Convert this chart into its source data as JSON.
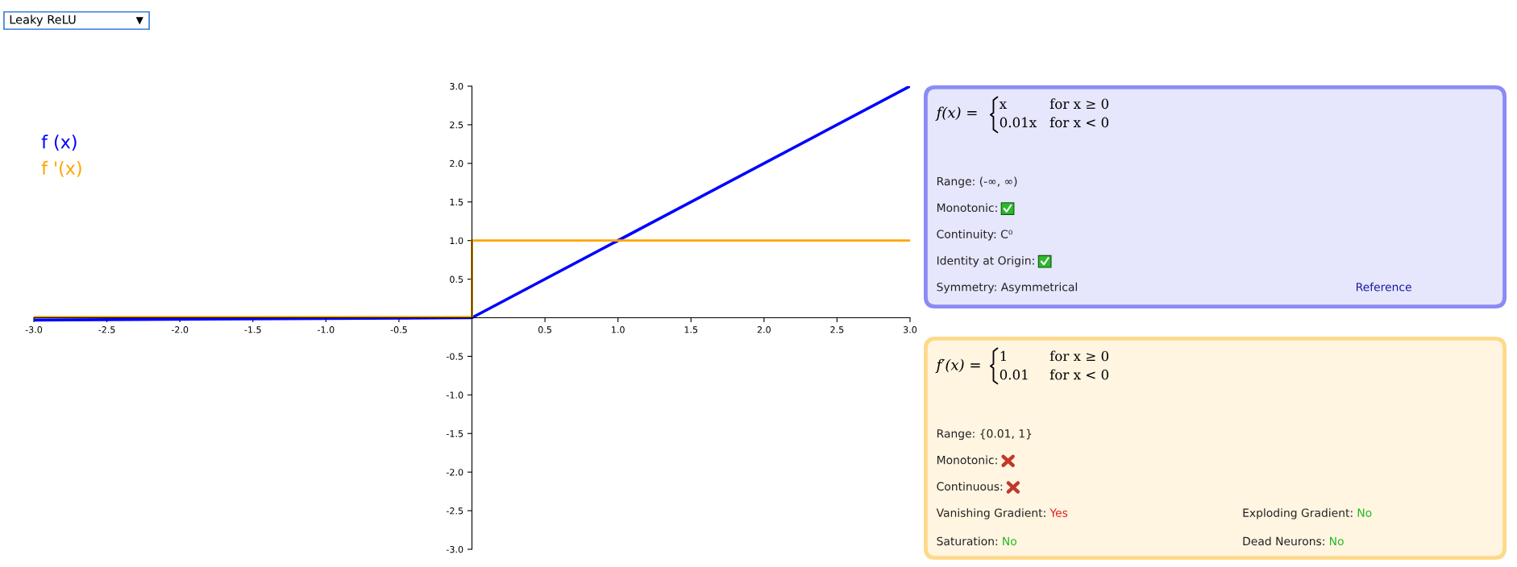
{
  "chart_data": [
    {
      "type": "other",
      "annotations": [
        "Leaky ReLU"
      ]
    },
    {
      "type": "line",
      "xlim": [
        -3,
        3
      ],
      "ylim": [
        -3,
        3
      ],
      "xticks": [
        {
          "value": -3,
          "label": "-3.0"
        },
        {
          "value": -2.5,
          "label": "-2.5"
        },
        {
          "value": -2,
          "label": "-2.0"
        },
        {
          "value": -1.5,
          "label": "-1.5"
        },
        {
          "value": -1,
          "label": "-1.0"
        },
        {
          "value": -0.5,
          "label": "-0.5"
        },
        {
          "value": 0.5,
          "label": "0.5"
        },
        {
          "value": 1,
          "label": "1.0"
        },
        {
          "value": 1.5,
          "label": "1.5"
        },
        {
          "value": 2,
          "label": "2.0"
        },
        {
          "value": 2.5,
          "label": "2.5"
        },
        {
          "value": 3,
          "label": "3.0"
        }
      ],
      "yticks": [
        {
          "value": -3,
          "label": "-3.0"
        },
        {
          "value": -2.5,
          "label": "-2.5"
        },
        {
          "value": -2,
          "label": "-2.0"
        },
        {
          "value": -1.5,
          "label": "-1.5"
        },
        {
          "value": -1,
          "label": "-1.0"
        },
        {
          "value": -0.5,
          "label": "-0.5"
        },
        {
          "value": 0.5,
          "label": "0.5"
        },
        {
          "value": 1,
          "label": "1.0"
        },
        {
          "value": 1.5,
          "label": "1.5"
        },
        {
          "value": 2,
          "label": "2.0"
        },
        {
          "value": 2.5,
          "label": "2.5"
        },
        {
          "value": 3,
          "label": "3.0"
        }
      ],
      "legend": "top left",
      "grid": false,
      "series": [
        {
          "name": "f (x)",
          "color": "#0000ff",
          "x": [
            -3,
            0,
            3
          ],
          "values": [
            -0.03,
            0,
            3
          ]
        },
        {
          "name": "f '(x)",
          "color": "#ffa500",
          "x": [
            -3,
            0,
            0,
            3
          ],
          "values": [
            0.01,
            0.01,
            1,
            1
          ]
        }
      ]
    },
    {
      "type": "other",
      "annotations": [
        "f(x) =",
        "x",
        "for x ≥ 0",
        "0.01x",
        "for x < 0",
        "Range: (-∞, ∞)",
        "Monotonic:",
        "Continuity: C⁰",
        "Identity at Origin:",
        "Symmetry: Asymmetrical",
        "Reference"
      ]
    },
    {
      "type": "other",
      "annotations": [
        "f′(x) =",
        "1",
        "for x ≥ 0",
        "0.01",
        "for x < 0",
        "Range: {0.01, 1}",
        "Monotonic:",
        "Continuous:",
        "Vanishing Gradient:",
        "Yes",
        "Exploding Gradient:",
        "No",
        "Saturation:",
        "No",
        "Dead Neurons:",
        "No"
      ]
    }
  ]
}
